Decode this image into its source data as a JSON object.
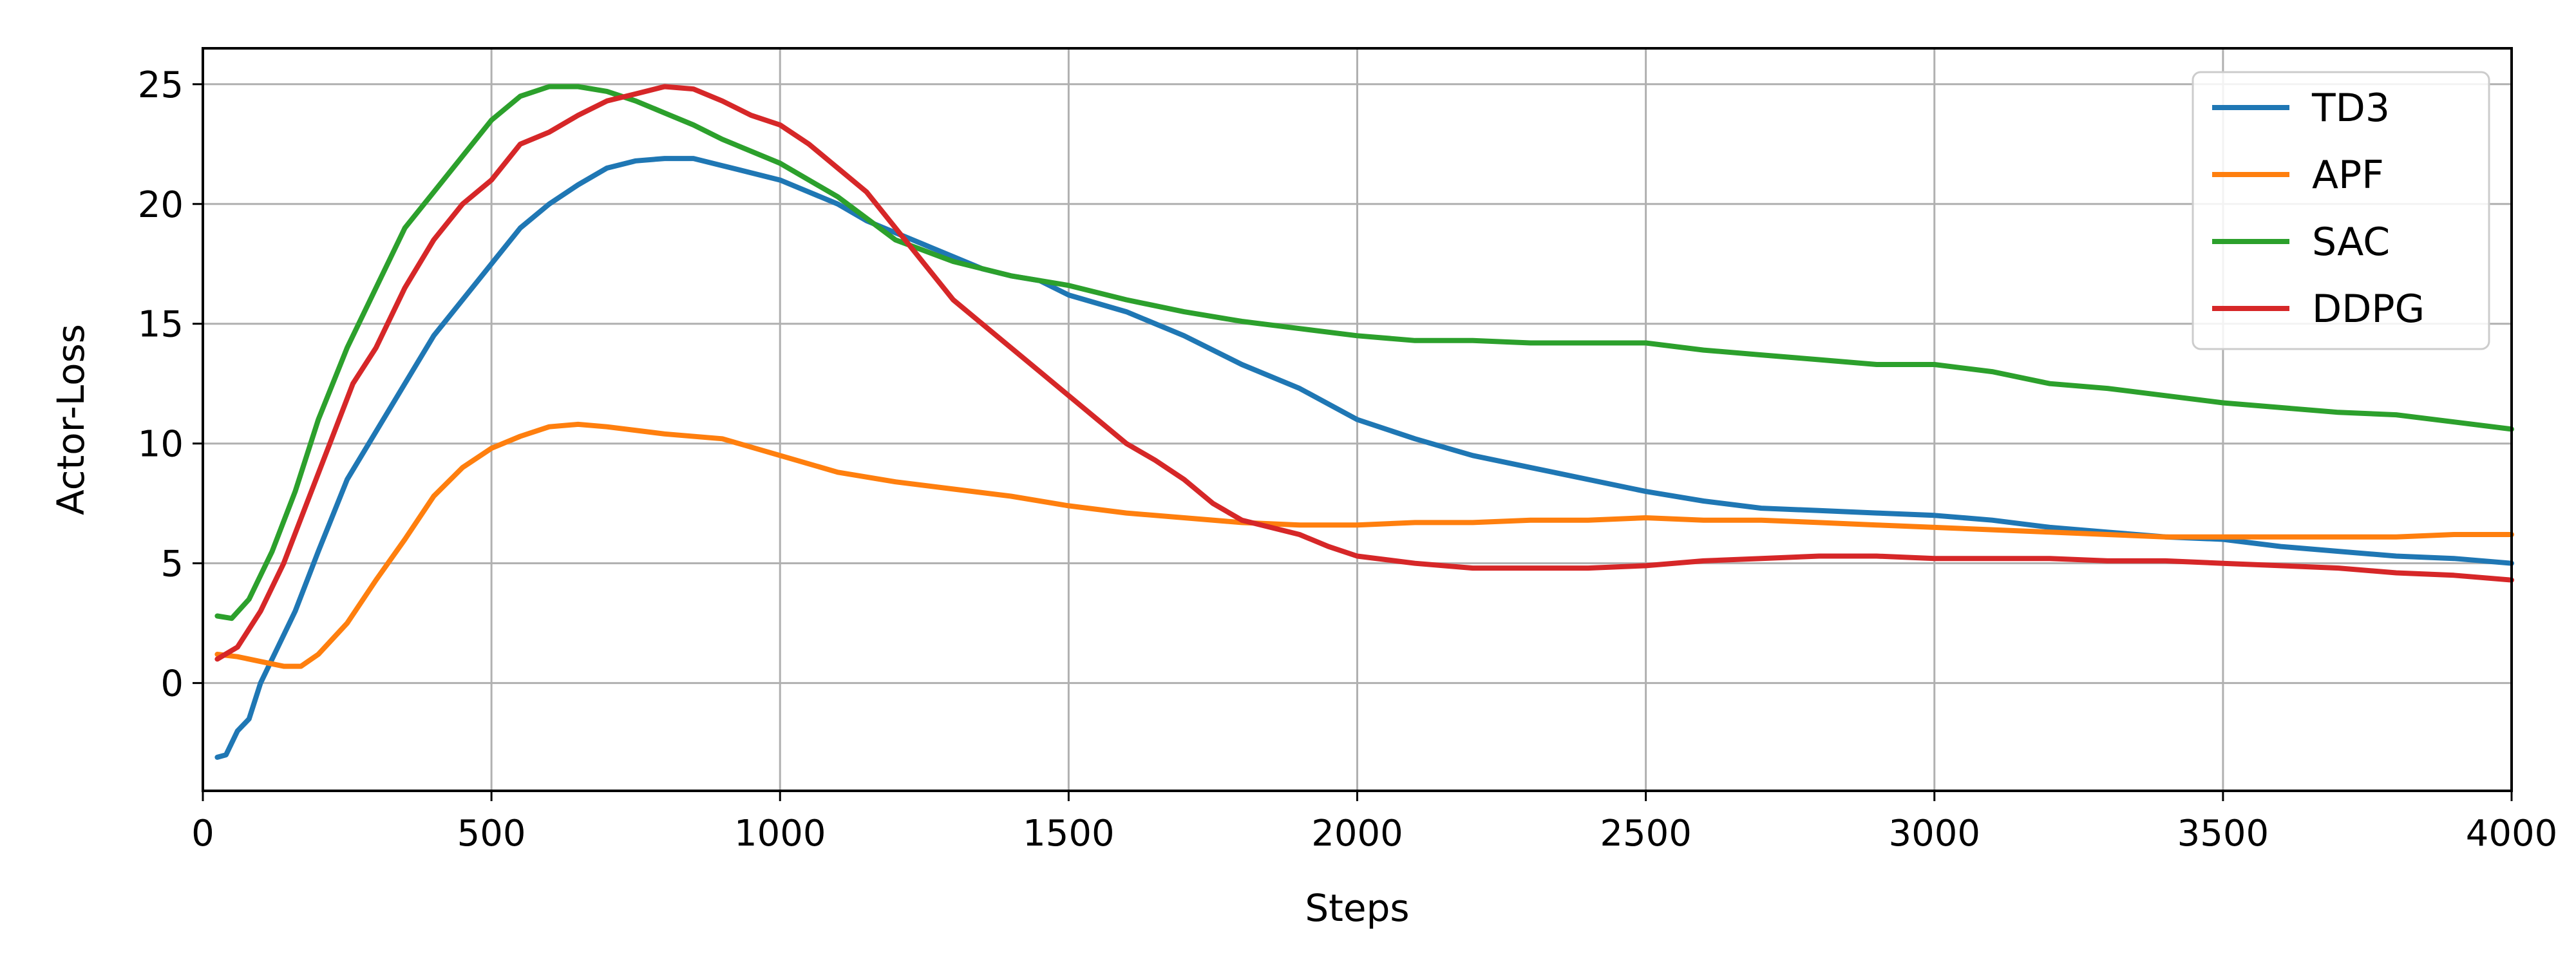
{
  "chart_data": {
    "type": "line",
    "title": "",
    "xlabel": "Steps",
    "ylabel": "Actor-Loss",
    "xlim": [
      0,
      4000
    ],
    "ylim": [
      -4.5,
      26.5
    ],
    "xticks": [
      0,
      500,
      1000,
      1500,
      2000,
      2500,
      3000,
      3500,
      4000
    ],
    "yticks": [
      0,
      5,
      10,
      15,
      20,
      25
    ],
    "grid": true,
    "legend_position": "top-right",
    "series": [
      {
        "name": "TD3",
        "color": "#1f77b4",
        "x": [
          25,
          40,
          60,
          80,
          100,
          130,
          160,
          200,
          250,
          300,
          350,
          400,
          450,
          500,
          550,
          600,
          650,
          700,
          750,
          800,
          850,
          900,
          950,
          1000,
          1050,
          1100,
          1150,
          1200,
          1250,
          1300,
          1350,
          1400,
          1450,
          1500,
          1600,
          1700,
          1800,
          1900,
          2000,
          2100,
          2200,
          2300,
          2400,
          2500,
          2600,
          2700,
          2800,
          2900,
          3000,
          3100,
          3200,
          3300,
          3400,
          3500,
          3600,
          3700,
          3800,
          3900,
          4000
        ],
        "y": [
          -3.1,
          -3.0,
          -2.0,
          -1.5,
          0.0,
          1.5,
          3.0,
          5.5,
          8.5,
          10.5,
          12.5,
          14.5,
          16.0,
          17.5,
          19.0,
          20.0,
          20.8,
          21.5,
          21.8,
          21.9,
          21.9,
          21.6,
          21.3,
          21.0,
          20.5,
          20.0,
          19.3,
          18.8,
          18.3,
          17.8,
          17.3,
          17.0,
          16.8,
          16.2,
          15.5,
          14.5,
          13.3,
          12.3,
          11.0,
          10.2,
          9.5,
          9.0,
          8.5,
          8.0,
          7.6,
          7.3,
          7.2,
          7.1,
          7.0,
          6.8,
          6.5,
          6.3,
          6.1,
          6.0,
          5.7,
          5.5,
          5.3,
          5.2,
          5.0
        ]
      },
      {
        "name": "APF",
        "color": "#ff7f0e",
        "x": [
          25,
          60,
          100,
          140,
          170,
          200,
          250,
          300,
          350,
          400,
          450,
          500,
          550,
          600,
          650,
          700,
          800,
          900,
          1000,
          1100,
          1200,
          1300,
          1400,
          1500,
          1600,
          1700,
          1800,
          1900,
          2000,
          2100,
          2200,
          2300,
          2400,
          2500,
          2600,
          2700,
          2800,
          2900,
          3000,
          3100,
          3200,
          3300,
          3400,
          3500,
          3600,
          3700,
          3800,
          3900,
          4000
        ],
        "y": [
          1.2,
          1.1,
          0.9,
          0.7,
          0.7,
          1.2,
          2.5,
          4.3,
          6.0,
          7.8,
          9.0,
          9.8,
          10.3,
          10.7,
          10.8,
          10.7,
          10.4,
          10.2,
          9.5,
          8.8,
          8.4,
          8.1,
          7.8,
          7.4,
          7.1,
          6.9,
          6.7,
          6.6,
          6.6,
          6.7,
          6.7,
          6.8,
          6.8,
          6.9,
          6.8,
          6.8,
          6.7,
          6.6,
          6.5,
          6.4,
          6.3,
          6.2,
          6.1,
          6.1,
          6.1,
          6.1,
          6.1,
          6.2,
          6.2
        ]
      },
      {
        "name": "SAC",
        "color": "#2ca02c",
        "x": [
          25,
          50,
          80,
          120,
          160,
          200,
          250,
          300,
          350,
          400,
          450,
          500,
          550,
          600,
          650,
          700,
          750,
          800,
          850,
          900,
          1000,
          1100,
          1200,
          1300,
          1400,
          1500,
          1600,
          1700,
          1800,
          1900,
          2000,
          2100,
          2200,
          2300,
          2400,
          2500,
          2600,
          2700,
          2800,
          2900,
          3000,
          3100,
          3200,
          3300,
          3400,
          3500,
          3600,
          3700,
          3800,
          3900,
          4000
        ],
        "y": [
          2.8,
          2.7,
          3.5,
          5.5,
          8.0,
          11.0,
          14.0,
          16.5,
          19.0,
          20.5,
          22.0,
          23.5,
          24.5,
          24.9,
          24.9,
          24.7,
          24.3,
          23.8,
          23.3,
          22.7,
          21.7,
          20.3,
          18.5,
          17.6,
          17.0,
          16.6,
          16.0,
          15.5,
          15.1,
          14.8,
          14.5,
          14.3,
          14.3,
          14.2,
          14.2,
          14.2,
          13.9,
          13.7,
          13.5,
          13.3,
          13.3,
          13.0,
          12.5,
          12.3,
          12.0,
          11.7,
          11.5,
          11.3,
          11.2,
          10.9,
          10.6
        ]
      },
      {
        "name": "DDPG",
        "color": "#d62728",
        "x": [
          25,
          60,
          100,
          140,
          180,
          220,
          260,
          300,
          350,
          400,
          450,
          500,
          550,
          600,
          650,
          700,
          750,
          800,
          850,
          900,
          950,
          1000,
          1050,
          1100,
          1150,
          1200,
          1250,
          1300,
          1350,
          1400,
          1450,
          1500,
          1550,
          1600,
          1650,
          1700,
          1750,
          1800,
          1850,
          1900,
          1950,
          2000,
          2100,
          2200,
          2300,
          2400,
          2500,
          2600,
          2700,
          2800,
          2900,
          3000,
          3100,
          3200,
          3300,
          3400,
          3500,
          3600,
          3700,
          3800,
          3900,
          4000
        ],
        "y": [
          1.0,
          1.5,
          3.0,
          5.0,
          7.5,
          10.0,
          12.5,
          14.0,
          16.5,
          18.5,
          20.0,
          21.0,
          22.5,
          23.0,
          23.7,
          24.3,
          24.6,
          24.9,
          24.8,
          24.3,
          23.7,
          23.3,
          22.5,
          21.5,
          20.5,
          19.0,
          17.5,
          16.0,
          15.0,
          14.0,
          13.0,
          12.0,
          11.0,
          10.0,
          9.3,
          8.5,
          7.5,
          6.8,
          6.5,
          6.2,
          5.7,
          5.3,
          5.0,
          4.8,
          4.8,
          4.8,
          4.9,
          5.1,
          5.2,
          5.3,
          5.3,
          5.2,
          5.2,
          5.2,
          5.1,
          5.1,
          5.0,
          4.9,
          4.8,
          4.6,
          4.5,
          4.3
        ]
      }
    ]
  }
}
